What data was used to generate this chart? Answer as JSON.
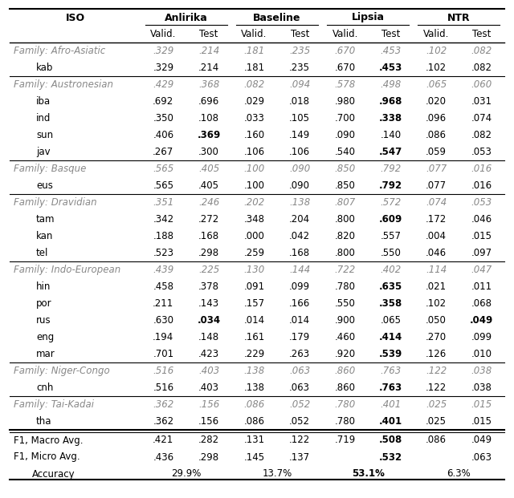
{
  "col_headers_top": [
    "ISO",
    "Anlirika",
    "Baseline",
    "Lipsia",
    "NTR"
  ],
  "col_headers_sub": [
    "",
    "Valid.",
    "Test",
    "Valid.",
    "Test",
    "Valid.",
    "Test",
    "Valid.",
    "Test"
  ],
  "rows": [
    {
      "label": "Family: Afro-Asiatic",
      "indent": 0,
      "italic_label": true,
      "values": [
        ".329",
        ".214",
        ".181",
        ".235",
        ".670",
        ".453",
        ".102",
        ".082"
      ],
      "bold": [
        false,
        false,
        false,
        false,
        false,
        false,
        false,
        false
      ]
    },
    {
      "label": "kab",
      "indent": 1,
      "italic_label": false,
      "values": [
        ".329",
        ".214",
        ".181",
        ".235",
        ".670",
        ".453",
        ".102",
        ".082"
      ],
      "bold": [
        false,
        false,
        false,
        false,
        false,
        true,
        false,
        false
      ]
    },
    {
      "label": "Family: Austronesian",
      "indent": 0,
      "italic_label": true,
      "values": [
        ".429",
        ".368",
        ".082",
        ".094",
        ".578",
        ".498",
        ".065",
        ".060"
      ],
      "bold": [
        false,
        false,
        false,
        false,
        false,
        false,
        false,
        false
      ]
    },
    {
      "label": "iba",
      "indent": 1,
      "italic_label": false,
      "values": [
        ".692",
        ".696",
        ".029",
        ".018",
        ".980",
        ".968",
        ".020",
        ".031"
      ],
      "bold": [
        false,
        false,
        false,
        false,
        false,
        true,
        false,
        false
      ]
    },
    {
      "label": "ind",
      "indent": 1,
      "italic_label": false,
      "values": [
        ".350",
        ".108",
        ".033",
        ".105",
        ".700",
        ".338",
        ".096",
        ".074"
      ],
      "bold": [
        false,
        false,
        false,
        false,
        false,
        true,
        false,
        false
      ]
    },
    {
      "label": "sun",
      "indent": 1,
      "italic_label": false,
      "values": [
        ".406",
        ".369",
        ".160",
        ".149",
        ".090",
        ".140",
        ".086",
        ".082"
      ],
      "bold": [
        false,
        true,
        false,
        false,
        false,
        false,
        false,
        false
      ]
    },
    {
      "label": "jav",
      "indent": 1,
      "italic_label": false,
      "values": [
        ".267",
        ".300",
        ".106",
        ".106",
        ".540",
        ".547",
        ".059",
        ".053"
      ],
      "bold": [
        false,
        false,
        false,
        false,
        false,
        true,
        false,
        false
      ]
    },
    {
      "label": "Family: Basque",
      "indent": 0,
      "italic_label": true,
      "values": [
        ".565",
        ".405",
        ".100",
        ".090",
        ".850",
        ".792",
        ".077",
        ".016"
      ],
      "bold": [
        false,
        false,
        false,
        false,
        false,
        false,
        false,
        false
      ]
    },
    {
      "label": "eus",
      "indent": 1,
      "italic_label": false,
      "values": [
        ".565",
        ".405",
        ".100",
        ".090",
        ".850",
        ".792",
        ".077",
        ".016"
      ],
      "bold": [
        false,
        false,
        false,
        false,
        false,
        true,
        false,
        false
      ]
    },
    {
      "label": "Family: Dravidian",
      "indent": 0,
      "italic_label": true,
      "values": [
        ".351",
        ".246",
        ".202",
        ".138",
        ".807",
        ".572",
        ".074",
        ".053"
      ],
      "bold": [
        false,
        false,
        false,
        false,
        false,
        false,
        false,
        false
      ]
    },
    {
      "label": "tam",
      "indent": 1,
      "italic_label": false,
      "values": [
        ".342",
        ".272",
        ".348",
        ".204",
        ".800",
        ".609",
        ".172",
        ".046"
      ],
      "bold": [
        false,
        false,
        false,
        false,
        false,
        true,
        false,
        false
      ]
    },
    {
      "label": "kan",
      "indent": 1,
      "italic_label": false,
      "values": [
        ".188",
        ".168",
        ".000",
        ".042",
        ".820",
        ".557",
        ".004",
        ".015"
      ],
      "bold": [
        false,
        false,
        false,
        false,
        false,
        false,
        false,
        false
      ]
    },
    {
      "label": "tel",
      "indent": 1,
      "italic_label": false,
      "values": [
        ".523",
        ".298",
        ".259",
        ".168",
        ".800",
        ".550",
        ".046",
        ".097"
      ],
      "bold": [
        false,
        false,
        false,
        false,
        false,
        false,
        false,
        false
      ]
    },
    {
      "label": "Family: Indo-European",
      "indent": 0,
      "italic_label": true,
      "values": [
        ".439",
        ".225",
        ".130",
        ".144",
        ".722",
        ".402",
        ".114",
        ".047"
      ],
      "bold": [
        false,
        false,
        false,
        false,
        false,
        false,
        false,
        false
      ]
    },
    {
      "label": "hin",
      "indent": 1,
      "italic_label": false,
      "values": [
        ".458",
        ".378",
        ".091",
        ".099",
        ".780",
        ".635",
        ".021",
        ".011"
      ],
      "bold": [
        false,
        false,
        false,
        false,
        false,
        true,
        false,
        false
      ]
    },
    {
      "label": "por",
      "indent": 1,
      "italic_label": false,
      "values": [
        ".211",
        ".143",
        ".157",
        ".166",
        ".550",
        ".358",
        ".102",
        ".068"
      ],
      "bold": [
        false,
        false,
        false,
        false,
        false,
        true,
        false,
        false
      ]
    },
    {
      "label": "rus",
      "indent": 1,
      "italic_label": false,
      "values": [
        ".630",
        ".034",
        ".014",
        ".014",
        ".900",
        ".065",
        ".050",
        ".049"
      ],
      "bold": [
        false,
        true,
        false,
        false,
        false,
        false,
        false,
        true
      ]
    },
    {
      "label": "eng",
      "indent": 1,
      "italic_label": false,
      "values": [
        ".194",
        ".148",
        ".161",
        ".179",
        ".460",
        ".414",
        ".270",
        ".099"
      ],
      "bold": [
        false,
        false,
        false,
        false,
        false,
        true,
        false,
        false
      ]
    },
    {
      "label": "mar",
      "indent": 1,
      "italic_label": false,
      "values": [
        ".701",
        ".423",
        ".229",
        ".263",
        ".920",
        ".539",
        ".126",
        ".010"
      ],
      "bold": [
        false,
        false,
        false,
        false,
        false,
        true,
        false,
        false
      ]
    },
    {
      "label": "Family: Niger-Congo",
      "indent": 0,
      "italic_label": true,
      "values": [
        ".516",
        ".403",
        ".138",
        ".063",
        ".860",
        ".763",
        ".122",
        ".038"
      ],
      "bold": [
        false,
        false,
        false,
        false,
        false,
        false,
        false,
        false
      ]
    },
    {
      "label": "cnh",
      "indent": 1,
      "italic_label": false,
      "values": [
        ".516",
        ".403",
        ".138",
        ".063",
        ".860",
        ".763",
        ".122",
        ".038"
      ],
      "bold": [
        false,
        false,
        false,
        false,
        false,
        true,
        false,
        false
      ]
    },
    {
      "label": "Family: Tai-Kadai",
      "indent": 0,
      "italic_label": true,
      "values": [
        ".362",
        ".156",
        ".086",
        ".052",
        ".780",
        ".401",
        ".025",
        ".015"
      ],
      "bold": [
        false,
        false,
        false,
        false,
        false,
        false,
        false,
        false
      ]
    },
    {
      "label": "tha",
      "indent": 1,
      "italic_label": false,
      "values": [
        ".362",
        ".156",
        ".086",
        ".052",
        ".780",
        ".401",
        ".025",
        ".015"
      ],
      "bold": [
        false,
        false,
        false,
        false,
        false,
        true,
        false,
        false
      ]
    }
  ],
  "footer_rows": [
    {
      "label": "F1, Macro Avg.",
      "values": [
        ".421",
        ".282",
        ".131",
        ".122",
        ".719",
        ".508",
        ".086",
        ".049"
      ],
      "bold": [
        false,
        false,
        false,
        false,
        false,
        true,
        false,
        false
      ]
    },
    {
      "label": "F1, Micro Avg.",
      "values": [
        ".436",
        ".298",
        ".145",
        ".137",
        "",
        ".532",
        "",
        ".063"
      ],
      "bold": [
        false,
        false,
        false,
        false,
        false,
        true,
        false,
        false
      ]
    },
    {
      "label": "Accuracy",
      "values": [
        "29.9%",
        "13.7%",
        "53.1%",
        "6.3%"
      ],
      "bold": [
        false,
        false,
        true,
        false
      ]
    }
  ],
  "separator_after_rows": [
    1,
    6,
    8,
    12,
    18,
    20,
    22
  ],
  "bg_color": "#ffffff",
  "text_color": "#000000",
  "italic_color": "#888888"
}
